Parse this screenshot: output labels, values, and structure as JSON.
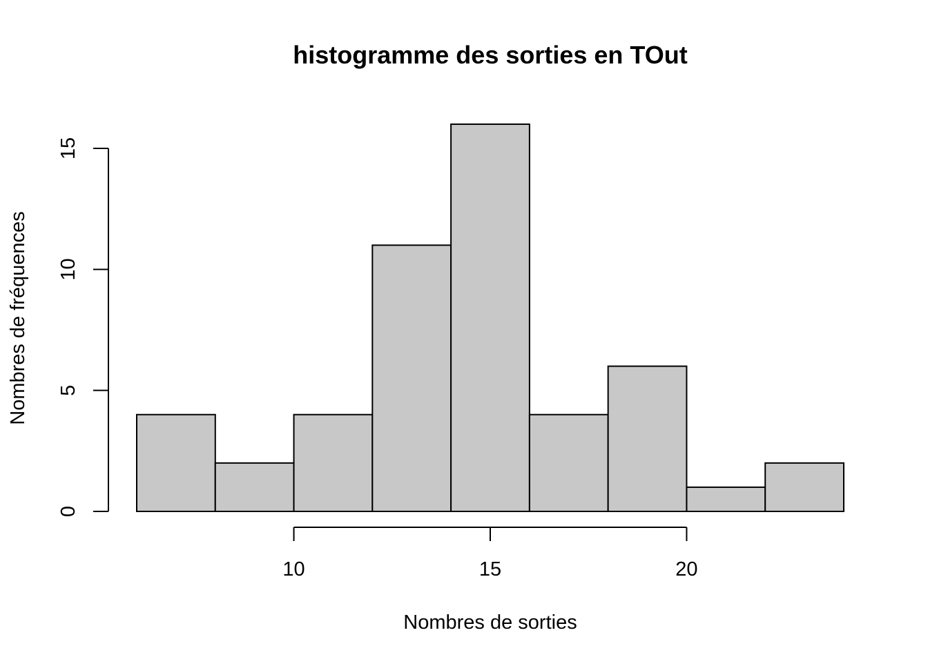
{
  "chart_data": {
    "type": "bar",
    "subtype": "histogram",
    "title": "histogramme des sorties en TOut",
    "xlabel": "Nombres de sorties",
    "ylabel": "Nombres de fréquences",
    "bins": [
      {
        "start": 6,
        "end": 8,
        "count": 4
      },
      {
        "start": 8,
        "end": 10,
        "count": 2
      },
      {
        "start": 10,
        "end": 12,
        "count": 4
      },
      {
        "start": 12,
        "end": 14,
        "count": 11
      },
      {
        "start": 14,
        "end": 16,
        "count": 16
      },
      {
        "start": 16,
        "end": 18,
        "count": 4
      },
      {
        "start": 18,
        "end": 20,
        "count": 6
      },
      {
        "start": 20,
        "end": 22,
        "count": 1
      },
      {
        "start": 22,
        "end": 24,
        "count": 2
      }
    ],
    "x_ticks": [
      {
        "value": 10,
        "label": "10"
      },
      {
        "value": 15,
        "label": "15"
      },
      {
        "value": 20,
        "label": "20"
      }
    ],
    "y_ticks": [
      {
        "value": 0,
        "label": "0"
      },
      {
        "value": 5,
        "label": "5"
      },
      {
        "value": 10,
        "label": "10"
      },
      {
        "value": 15,
        "label": "15"
      }
    ],
    "xlim": [
      6,
      24
    ],
    "ylim": [
      0,
      16
    ],
    "grid": false,
    "legend": "none",
    "colors": {
      "bar_fill": "#c8c8c8",
      "bar_stroke": "#000000",
      "axis": "#000000"
    }
  }
}
